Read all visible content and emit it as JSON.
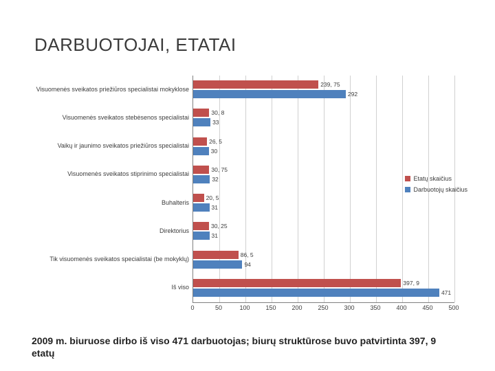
{
  "title": "DARBUOTOJAI, ETATAI",
  "chart": {
    "type": "bar",
    "orientation": "horizontal",
    "x_axis": {
      "min": 0,
      "max": 500,
      "step": 50
    },
    "series": [
      {
        "name": "Etatų skaičius",
        "color": "#c0504d"
      },
      {
        "name": "Darbuotojų skaičius",
        "color": "#4f81bd"
      }
    ],
    "categories": [
      {
        "label": "Visuomenės sveikatos priežiūros  specialistai mokyklose",
        "v1": 239.75,
        "v1_label": "239, 75",
        "v2": 292,
        "v2_label": "292"
      },
      {
        "label": "Visuomenės sveikatos stebėsenos specialistai",
        "v1": 30.8,
        "v1_label": "30, 8",
        "v2": 33,
        "v2_label": "33"
      },
      {
        "label": "Vaikų ir jaunimo sveikatos priežiūros specialistai",
        "v1": 26.5,
        "v1_label": "26, 5",
        "v2": 30,
        "v2_label": "30"
      },
      {
        "label": "Visuomenės sveikatos stiprinimo specialistai",
        "v1": 30.75,
        "v1_label": "30, 75",
        "v2": 32,
        "v2_label": "32"
      },
      {
        "label": "Buhalteris",
        "v1": 20.5,
        "v1_label": "20, 5",
        "v2": 31,
        "v2_label": "31"
      },
      {
        "label": "Direktorius",
        "v1": 30.25,
        "v1_label": "30, 25",
        "v2": 31,
        "v2_label": "31"
      },
      {
        "label": "Tik visuomenės sveikatos specialistai (be mokyklų)",
        "v1": 86.5,
        "v1_label": "86, 5",
        "v2": 94,
        "v2_label": "94"
      },
      {
        "label": "Iš viso",
        "v1": 397.9,
        "v1_label": "397, 9",
        "v2": 471,
        "v2_label": "471"
      }
    ],
    "grid_color": "#d0d0d0",
    "background_color": "#ffffff",
    "label_fontsize": 9
  },
  "footer": "2009 m. biuruose dirbo iš viso 471 darbuotojas; biurų struktūrose buvo patvirtinta 397, 9 etatų"
}
